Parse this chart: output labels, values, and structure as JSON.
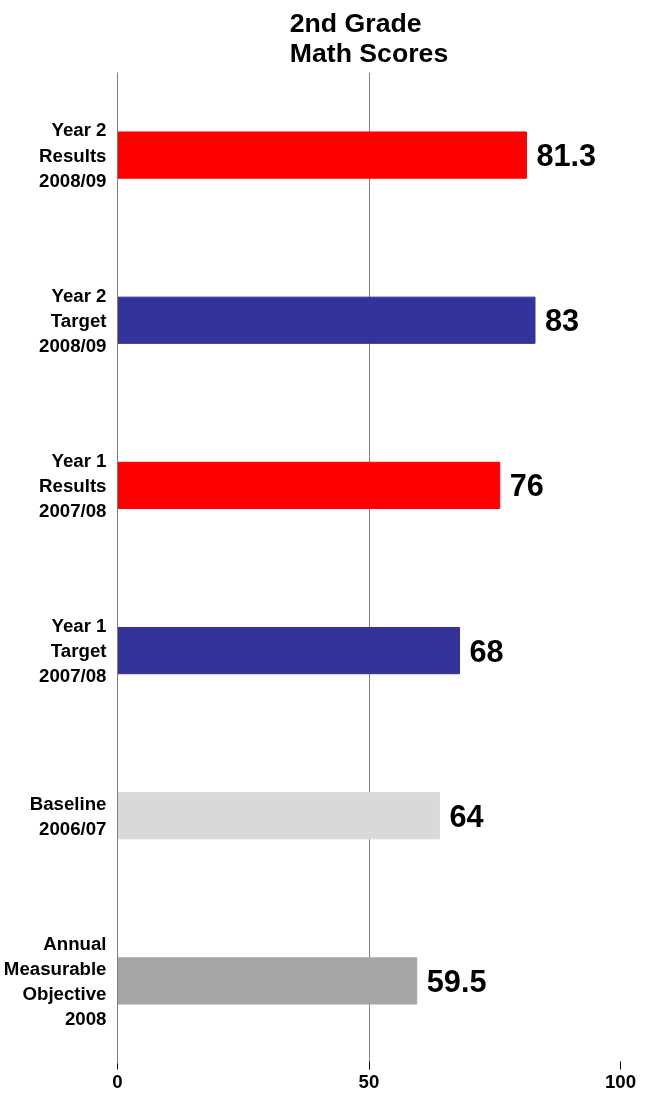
{
  "chart_data": {
    "type": "bar",
    "orientation": "horizontal",
    "title": "2nd Grade Math Scores",
    "categories": [
      "Year 2 Results 2008/09",
      "Year 2 Target 2008/09",
      "Year 1 Results 2007/08",
      "Year 1 Target 2007/08",
      "Baseline 2006/07",
      "Annual Measurable Objective 2008"
    ],
    "values": [
      81.3,
      83,
      76,
      68,
      64,
      59.5
    ],
    "colors": [
      "#ff0000",
      "#333399",
      "#ff0000",
      "#333399",
      "#d9d9d9",
      "#a6a6a6"
    ],
    "xlim": [
      0,
      100
    ],
    "xticks": [
      0,
      50,
      100
    ],
    "grid": "x",
    "data_labels": true
  }
}
